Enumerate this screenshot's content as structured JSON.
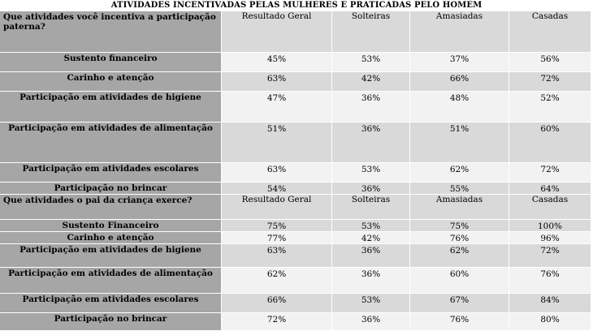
{
  "title": "ATIVIDADES INCENTIVADAS PELAS MULHERES E PRATICADAS PELO HOMEM",
  "columns": [
    "Resultado Geral",
    "Solteiras",
    "Amasiadas",
    "Casadas"
  ],
  "section1": {
    "question": "Que atividades você incentiva a participação paterna?",
    "rows": [
      {
        "label": "Sustento financeiro",
        "values": [
          "45%",
          "53%",
          "37%",
          "56%"
        ]
      },
      {
        "label": "Carinho e atenção",
        "values": [
          "63%",
          "42%",
          "66%",
          "72%"
        ]
      },
      {
        "label": "Participação em atividades de higiene",
        "values": [
          "47%",
          "36%",
          "48%",
          "52%"
        ]
      },
      {
        "label": "Participação em atividades de alimentação",
        "values": [
          "51%",
          "36%",
          "51%",
          "60%"
        ]
      },
      {
        "label": "Participação em atividades escolares",
        "values": [
          "63%",
          "53%",
          "62%",
          "72%"
        ]
      },
      {
        "label": "Participação no brincar",
        "values": [
          "54%",
          "36%",
          "55%",
          "64%"
        ]
      }
    ]
  },
  "section2": {
    "question": "Que atividades o pai da criança exerce?",
    "rows": [
      {
        "label": "Sustento Financeiro",
        "values": [
          "75%",
          "53%",
          "75%",
          "100%"
        ]
      },
      {
        "label": "Carinho e atenção",
        "values": [
          "77%",
          "42%",
          "76%",
          "96%"
        ]
      },
      {
        "label": "Participação em atividades de higiene",
        "values": [
          "63%",
          "36%",
          "62%",
          "72%"
        ]
      },
      {
        "label": "Participação em atividades de alimentação",
        "values": [
          "62%",
          "36%",
          "60%",
          "76%"
        ]
      },
      {
        "label": "Participação em atividades escolares",
        "values": [
          "66%",
          "53%",
          "67%",
          "84%"
        ]
      },
      {
        "label": "Participação no brincar",
        "values": [
          "72%",
          "36%",
          "76%",
          "80%"
        ]
      }
    ]
  }
}
